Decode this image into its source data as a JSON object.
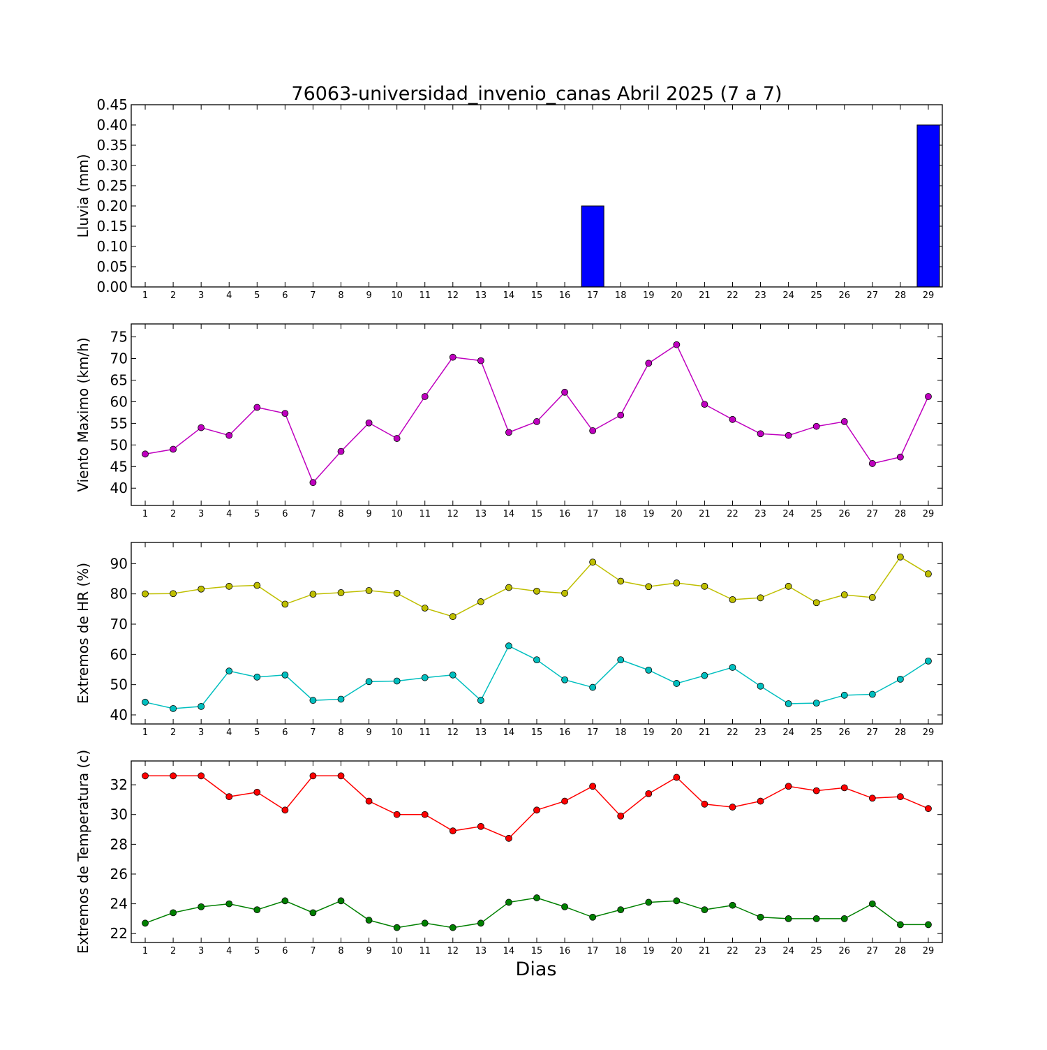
{
  "figure": {
    "title": "76063-universidad_invenio_canas Abril 2025  (7 a 7)",
    "xlabel": "Dias"
  },
  "chart_data": [
    {
      "type": "bar",
      "ylabel": "Lluvia (mm)",
      "ylim": [
        0,
        0.45
      ],
      "yticks": [
        0.0,
        0.05,
        0.1,
        0.15,
        0.2,
        0.25,
        0.3,
        0.35,
        0.4,
        0.45
      ],
      "ytick_labels": [
        "0.00",
        "0.05",
        "0.10",
        "0.15",
        "0.20",
        "0.25",
        "0.30",
        "0.35",
        "0.40",
        "0.45"
      ],
      "x": [
        1,
        2,
        3,
        4,
        5,
        6,
        7,
        8,
        9,
        10,
        11,
        12,
        13,
        14,
        15,
        16,
        17,
        18,
        19,
        20,
        21,
        22,
        23,
        24,
        25,
        26,
        27,
        28,
        29
      ],
      "series": [
        {
          "color": "#0000ff",
          "values": [
            0,
            0,
            0,
            0,
            0,
            0,
            0,
            0,
            0,
            0,
            0,
            0,
            0,
            0,
            0,
            0,
            0.2,
            0,
            0,
            0,
            0,
            0,
            0,
            0,
            0,
            0,
            0,
            0,
            0.4
          ]
        }
      ]
    },
    {
      "type": "line",
      "ylabel": "Viento Maximo (km/h)",
      "ylim": [
        36,
        78
      ],
      "yticks": [
        40,
        45,
        50,
        55,
        60,
        65,
        70,
        75
      ],
      "ytick_labels": [
        "40",
        "45",
        "50",
        "55",
        "60",
        "65",
        "70",
        "75"
      ],
      "x": [
        1,
        2,
        3,
        4,
        5,
        6,
        7,
        8,
        9,
        10,
        11,
        12,
        13,
        14,
        15,
        16,
        17,
        18,
        19,
        20,
        21,
        22,
        23,
        24,
        25,
        26,
        27,
        28,
        29
      ],
      "series": [
        {
          "color": "#bf00bf",
          "values": [
            47.9,
            49.0,
            54.0,
            52.2,
            58.7,
            57.3,
            41.3,
            48.5,
            55.1,
            51.5,
            61.2,
            70.3,
            69.5,
            52.9,
            55.4,
            62.2,
            53.3,
            56.9,
            68.9,
            73.2,
            59.4,
            55.9,
            52.6,
            52.2,
            54.3,
            55.4,
            45.7,
            47.2,
            61.2
          ]
        }
      ]
    },
    {
      "type": "line",
      "ylabel": "Extremos de HR (%)",
      "ylim": [
        37,
        97
      ],
      "yticks": [
        40,
        50,
        60,
        70,
        80,
        90
      ],
      "ytick_labels": [
        "40",
        "50",
        "60",
        "70",
        "80",
        "90"
      ],
      "x": [
        1,
        2,
        3,
        4,
        5,
        6,
        7,
        8,
        9,
        10,
        11,
        12,
        13,
        14,
        15,
        16,
        17,
        18,
        19,
        20,
        21,
        22,
        23,
        24,
        25,
        26,
        27,
        28,
        29
      ],
      "series": [
        {
          "color": "#bfbf00",
          "values": [
            80.0,
            80.1,
            81.6,
            82.5,
            82.8,
            76.6,
            79.9,
            80.4,
            81.1,
            80.2,
            75.3,
            72.5,
            77.4,
            82.1,
            80.9,
            80.2,
            90.5,
            84.2,
            82.4,
            83.6,
            82.5,
            78.1,
            78.7,
            82.5,
            77.1,
            79.7,
            78.8,
            92.2,
            86.6
          ]
        },
        {
          "color": "#00bfbf",
          "values": [
            44.2,
            42.1,
            42.8,
            54.5,
            52.5,
            53.2,
            44.8,
            45.2,
            51.0,
            51.2,
            52.3,
            53.2,
            44.8,
            62.8,
            58.2,
            51.6,
            49.1,
            58.2,
            54.8,
            50.4,
            53.0,
            55.7,
            49.5,
            43.7,
            43.9,
            46.5,
            46.8,
            51.8,
            57.8
          ]
        }
      ]
    },
    {
      "type": "line",
      "ylabel": "Extremos de Temperatura (c)",
      "ylim": [
        21.4,
        33.6
      ],
      "yticks": [
        22,
        24,
        26,
        28,
        30,
        32
      ],
      "ytick_labels": [
        "22",
        "24",
        "26",
        "28",
        "30",
        "32"
      ],
      "x": [
        1,
        2,
        3,
        4,
        5,
        6,
        7,
        8,
        9,
        10,
        11,
        12,
        13,
        14,
        15,
        16,
        17,
        18,
        19,
        20,
        21,
        22,
        23,
        24,
        25,
        26,
        27,
        28,
        29
      ],
      "series": [
        {
          "color": "#ff0000",
          "values": [
            32.6,
            32.6,
            32.6,
            31.2,
            31.5,
            30.3,
            32.6,
            32.6,
            30.9,
            30.0,
            30.0,
            28.9,
            29.2,
            28.4,
            30.3,
            30.9,
            31.9,
            29.9,
            31.4,
            32.5,
            30.7,
            30.5,
            30.9,
            31.9,
            31.6,
            31.8,
            31.1,
            31.2,
            30.4
          ]
        },
        {
          "color": "#008000",
          "values": [
            22.7,
            23.4,
            23.8,
            24.0,
            23.6,
            24.2,
            23.4,
            24.2,
            22.9,
            22.4,
            22.7,
            22.4,
            22.7,
            24.1,
            24.4,
            23.8,
            23.1,
            23.6,
            24.1,
            24.2,
            23.6,
            23.9,
            23.1,
            23.0,
            23.0,
            23.0,
            24.0,
            22.6,
            22.6
          ]
        }
      ]
    }
  ]
}
